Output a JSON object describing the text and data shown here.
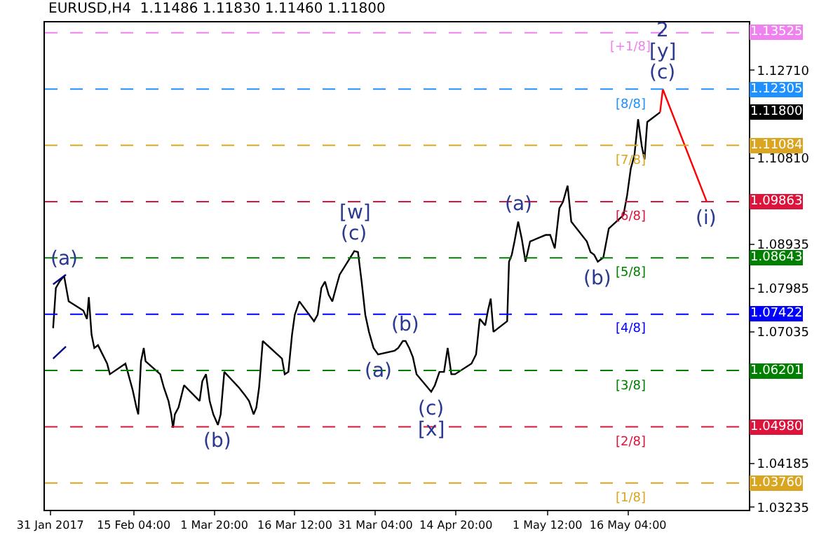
{
  "chart_data": {
    "type": "line",
    "title": "EURUSD,H4  1.11486 1.11830 1.11460 1.11800",
    "xlim": [
      "2017-01-30T00:00",
      "2017-06-07T04:00"
    ],
    "xticks": [
      {
        "value": "2017-01-31T00:00",
        "label": "31 Jan 2017"
      },
      {
        "value": "2017-02-15T04:00",
        "label": "15 Feb 04:00"
      },
      {
        "value": "2017-03-01T20:00",
        "label": "1 Mar 20:00"
      },
      {
        "value": "2017-03-16T12:00",
        "label": "16 Mar 12:00"
      },
      {
        "value": "2017-03-31T04:00",
        "label": "31 Mar 04:00"
      },
      {
        "value": "2017-04-14T20:00",
        "label": "14 Apr 20:00"
      },
      {
        "value": "2017-05-01T12:00",
        "label": "1 May 12:00"
      },
      {
        "value": "2017-05-16T04:00",
        "label": "16 May 04:00"
      }
    ],
    "ylim": [
      1.0318,
      1.1375
    ],
    "yticks": [
      {
        "value": 1.1271,
        "label": "1.12710"
      },
      {
        "value": 1.1081,
        "label": "1.10810"
      },
      {
        "value": 1.08935,
        "label": "1.08935"
      },
      {
        "value": 1.07985,
        "label": "1.07985"
      },
      {
        "value": 1.07035,
        "label": "1.07035"
      },
      {
        "value": 1.04185,
        "label": "1.04185"
      },
      {
        "value": 1.03235,
        "label": "1.03235"
      }
    ],
    "marker": "none",
    "line_style": "solid",
    "series": [
      {
        "color": "#000000",
        "x": [
          "2017-01-31T12:00",
          "2017-02-01T00:00",
          "2017-02-01T16:00",
          "2017-02-02T12:00",
          "2017-02-03T08:00",
          "2017-02-06T00:00",
          "2017-02-06T16:00",
          "2017-02-07T00:00",
          "2017-02-07T12:00",
          "2017-02-08T00:00",
          "2017-02-08T16:00",
          "2017-02-09T12:00",
          "2017-02-10T08:00",
          "2017-02-10T20:00",
          "2017-02-13T16:00",
          "2017-02-14T08:00",
          "2017-02-15T00:00",
          "2017-02-15T16:00",
          "2017-02-16T00:00",
          "2017-02-16T12:00",
          "2017-02-17T00:00",
          "2017-02-17T08:00",
          "2017-02-20T00:00",
          "2017-02-20T16:00",
          "2017-02-21T12:00",
          "2017-02-22T00:00",
          "2017-02-22T08:00",
          "2017-02-22T16:00",
          "2017-02-23T08:00",
          "2017-02-24T08:00",
          "2017-02-27T04:00",
          "2017-02-27T16:00",
          "2017-02-28T08:00",
          "2017-03-01T00:00",
          "2017-03-01T16:00",
          "2017-03-02T12:00",
          "2017-03-03T00:00",
          "2017-03-03T16:00",
          "2017-03-06T08:00",
          "2017-03-07T08:00",
          "2017-03-08T04:00",
          "2017-03-09T00:00",
          "2017-03-09T12:00",
          "2017-03-10T00:00",
          "2017-03-10T16:00",
          "2017-03-13T08:00",
          "2017-03-14T04:00",
          "2017-03-14T16:00",
          "2017-03-15T08:00",
          "2017-03-16T00:00",
          "2017-03-16T12:00",
          "2017-03-17T08:00",
          "2017-03-20T00:00",
          "2017-03-20T16:00",
          "2017-03-21T08:00",
          "2017-03-22T00:00",
          "2017-03-22T16:00",
          "2017-03-23T08:00",
          "2017-03-24T04:00",
          "2017-03-24T16:00",
          "2017-03-27T08:00",
          "2017-03-28T00:00",
          "2017-03-28T16:00",
          "2017-03-29T08:00",
          "2017-03-30T00:00",
          "2017-03-30T20:00",
          "2017-03-31T16:00",
          "2017-04-03T16:00",
          "2017-04-04T08:00",
          "2017-04-05T04:00",
          "2017-04-05T16:00",
          "2017-04-06T08:00",
          "2017-04-07T00:00",
          "2017-04-07T16:00",
          "2017-04-10T08:00",
          "2017-04-11T00:00",
          "2017-04-11T20:00",
          "2017-04-12T16:00",
          "2017-04-13T08:00",
          "2017-04-14T00:00",
          "2017-04-14T16:00",
          "2017-04-17T16:00",
          "2017-04-18T12:00",
          "2017-04-19T04:00",
          "2017-04-20T04:00",
          "2017-04-20T16:00",
          "2017-04-21T04:00",
          "2017-04-21T16:00",
          "2017-04-24T04:00",
          "2017-04-24T12:00",
          "2017-04-25T00:00",
          "2017-04-25T12:00",
          "2017-04-26T04:00",
          "2017-04-26T20:00",
          "2017-04-27T12:00",
          "2017-04-28T08:00",
          "2017-05-01T04:00",
          "2017-05-02T00:00",
          "2017-05-02T20:00",
          "2017-05-03T16:00",
          "2017-05-04T08:00",
          "2017-05-05T04:00",
          "2017-05-05T20:00",
          "2017-05-08T16:00",
          "2017-05-09T08:00",
          "2017-05-10T00:00",
          "2017-05-10T16:00",
          "2017-05-11T16:00",
          "2017-05-12T16:00",
          "2017-05-15T08:00",
          "2017-05-16T00:00",
          "2017-05-16T16:00",
          "2017-05-17T08:00",
          "2017-05-18T00:00",
          "2017-05-18T16:00",
          "2017-05-19T04:00",
          "2017-05-19T16:00",
          "2017-05-22T00:00"
        ],
        "values": [
          1.0712,
          1.0799,
          1.0813,
          1.0825,
          1.077,
          1.075,
          1.0732,
          1.0779,
          1.0698,
          1.0669,
          1.0675,
          1.0655,
          1.0635,
          1.0612,
          1.0635,
          1.0606,
          1.0577,
          1.054,
          1.0525,
          1.064,
          1.0669,
          1.064,
          1.0612,
          1.0583,
          1.0554,
          1.0525,
          1.0496,
          1.0525,
          1.054,
          1.0588,
          1.0554,
          1.0597,
          1.0612,
          1.0554,
          1.0525,
          1.0502,
          1.0525,
          1.0617,
          1.0583,
          1.0568,
          1.0554,
          1.0525,
          1.054,
          1.0583,
          1.0684,
          1.0655,
          1.0646,
          1.0612,
          1.0617,
          1.0698,
          1.0741,
          1.077,
          1.0727,
          1.0741,
          1.0799,
          1.0813,
          1.0784,
          1.077,
          1.0807,
          1.0828,
          1.0879,
          1.0877,
          1.0813,
          1.0741,
          1.0704,
          1.0669,
          1.0655,
          1.0663,
          1.0669,
          1.0684,
          1.0684,
          1.0669,
          1.0649,
          1.0612,
          1.0574,
          1.0588,
          1.0617,
          1.0617,
          1.0669,
          1.0612,
          1.0612,
          1.0635,
          1.0655,
          1.0732,
          1.0718,
          1.075,
          1.0776,
          1.0704,
          1.0727,
          1.0856,
          1.0871,
          1.09,
          1.0943,
          1.0905,
          1.0856,
          1.09,
          1.0914,
          1.0914,
          1.0885,
          1.0972,
          1.0986,
          1.1021,
          1.0943,
          1.09,
          1.0877,
          1.0871,
          1.0856,
          1.0865,
          1.0928,
          1.0957,
          1.1,
          1.1058,
          1.1087,
          1.1165,
          1.1107,
          1.1078,
          1.1159,
          1.118
        ]
      },
      {
        "color": "#ff0000",
        "x": [
          "2017-05-22T00:00",
          "2017-05-22T12:00",
          "2017-05-30T12:00"
        ],
        "values": [
          1.118,
          1.123,
          1.0986
        ]
      },
      {
        "color": "#000080",
        "x": [
          "2017-01-31T12:00",
          "2017-02-02T20:00"
        ],
        "values": [
          1.0646,
          1.0672
        ]
      },
      {
        "color": "#000080",
        "x": [
          "2017-01-31T12:00",
          "2017-02-02T20:00"
        ],
        "values": [
          1.0807,
          1.0828
        ]
      }
    ],
    "ref_lines": [
      {
        "axis": "y",
        "value": 1.13525,
        "label": "1.13525",
        "color": "#ee82ee",
        "line_style": "dashed"
      },
      {
        "axis": "y",
        "value": 1.12305,
        "label": "1.12305",
        "color": "#1e90ff",
        "line_style": "dashed"
      },
      {
        "axis": "y",
        "value": 1.11084,
        "label": "1.11084",
        "color": "#daa520",
        "line_style": "dashed"
      },
      {
        "axis": "y",
        "value": 1.09863,
        "label": "1.09863",
        "color": "#dc143c",
        "line_style": "dashed"
      },
      {
        "axis": "y",
        "value": 1.08643,
        "label": "1.08643",
        "color": "#008000",
        "line_style": "dashed"
      },
      {
        "axis": "y",
        "value": 1.07422,
        "label": "1.07422",
        "color": "#0000ff",
        "line_style": "dashed"
      },
      {
        "axis": "y",
        "value": 1.06201,
        "label": "1.06201",
        "color": "#008000",
        "line_style": "dashed"
      },
      {
        "axis": "y",
        "value": 1.0498,
        "label": "1.04980",
        "color": "#dc143c",
        "line_style": "dashed"
      },
      {
        "axis": "y",
        "value": 1.0376,
        "label": "1.03760",
        "color": "#daa520",
        "line_style": "dashed"
      }
    ],
    "annotations": [
      "1.11800",
      {
        "text": "[+1/8]",
        "x": "2017-05-16T16:00",
        "y": 1.13525
      },
      {
        "text": "[8/8]",
        "x": "2017-05-16T16:00",
        "y": 1.12305
      },
      {
        "text": "[7/8]",
        "x": "2017-05-16T16:00",
        "y": 1.11084
      },
      {
        "text": "[6/8]",
        "x": "2017-05-16T16:00",
        "y": 1.09863
      },
      {
        "text": "[5/8]",
        "x": "2017-05-16T16:00",
        "y": 1.08643
      },
      {
        "text": "[4/8]",
        "x": "2017-05-16T16:00",
        "y": 1.07422
      },
      {
        "text": "[3/8]",
        "x": "2017-05-16T16:00",
        "y": 1.06201
      },
      {
        "text": "[2/8]",
        "x": "2017-05-16T16:00",
        "y": 1.0498
      },
      {
        "text": "[1/8]",
        "x": "2017-05-16T16:00",
        "y": 1.0376
      },
      {
        "text": "(a)",
        "x": "2017-02-02T12:00",
        "y": 1.0825
      },
      {
        "text": "(c)",
        "x": "2017-03-27T08:00",
        "y": 1.0879
      },
      {
        "text": "[w]",
        "x": "2017-03-27T08:00",
        "y": 1.0879
      },
      {
        "text": "(b)",
        "x": "2017-03-02T12:00",
        "y": 1.0502
      },
      {
        "text": "(a)",
        "x": "2017-03-31T16:00",
        "y": 1.0655
      },
      {
        "text": "(b)",
        "x": "2017-04-05T16:00",
        "y": 1.0684
      },
      {
        "text": "(c)",
        "x": "2017-04-10T08:00",
        "y": 1.0574
      },
      {
        "text": "[x]",
        "x": "2017-04-10T08:00",
        "y": 1.0574
      },
      {
        "text": "(a)",
        "x": "2017-04-26T04:00",
        "y": 1.0943
      },
      {
        "text": "(b)",
        "x": "2017-05-10T16:00",
        "y": 1.0856
      },
      {
        "text": "(c)",
        "x": "2017-05-22T12:00",
        "y": 1.123
      },
      {
        "text": "[y]",
        "x": "2017-05-22T12:00",
        "y": 1.123
      },
      {
        "text": "2",
        "x": "2017-05-22T12:00",
        "y": 1.123
      },
      {
        "text": "(i)",
        "x": "2017-05-30T12:00",
        "y": 1.0986
      }
    ]
  }
}
